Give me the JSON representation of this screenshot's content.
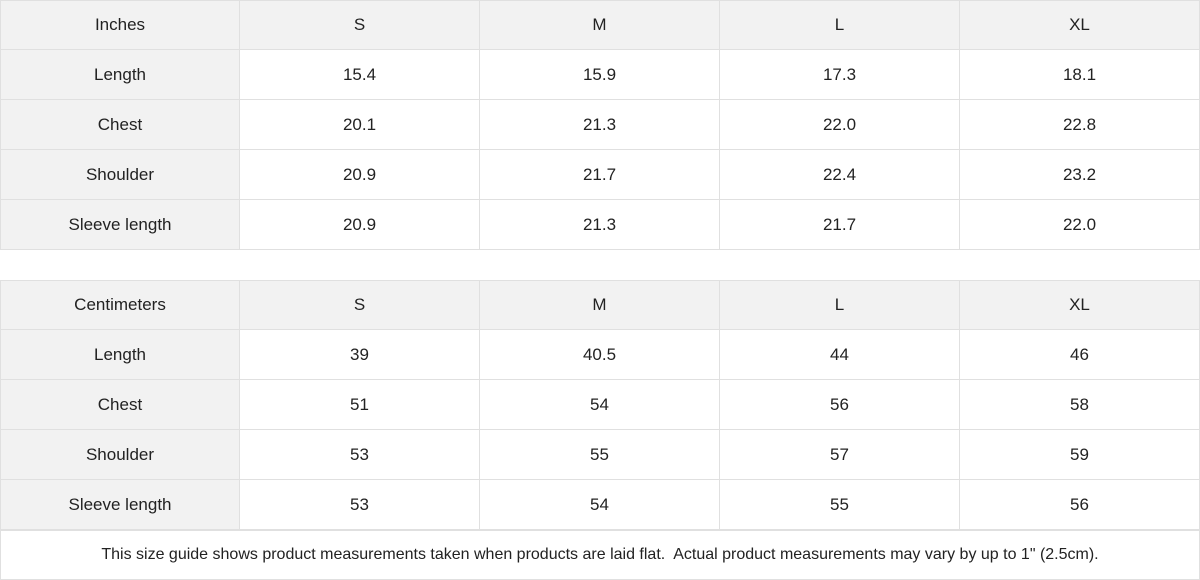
{
  "tables": [
    {
      "header": [
        "Inches",
        "S",
        "M",
        "L",
        "XL"
      ],
      "rows": [
        [
          "Length",
          "15.4",
          "15.9",
          "17.3",
          "18.1"
        ],
        [
          "Chest",
          "20.1",
          "21.3",
          "22.0",
          "22.8"
        ],
        [
          "Shoulder",
          "20.9",
          "21.7",
          "22.4",
          "23.2"
        ],
        [
          "Sleeve length",
          "20.9",
          "21.3",
          "21.7",
          "22.0"
        ]
      ]
    },
    {
      "header": [
        "Centimeters",
        "S",
        "M",
        "L",
        "XL"
      ],
      "rows": [
        [
          "Length",
          "39",
          "40.5",
          "44",
          "46"
        ],
        [
          "Chest",
          "51",
          "54",
          "56",
          "58"
        ],
        [
          "Shoulder",
          "53",
          "55",
          "57",
          "59"
        ],
        [
          "Sleeve length",
          "53",
          "54",
          "55",
          "56"
        ]
      ]
    }
  ],
  "note": "This size guide shows product measurements taken when products are laid flat.  Actual product measurements may vary by up to 1\" (2.5cm)."
}
